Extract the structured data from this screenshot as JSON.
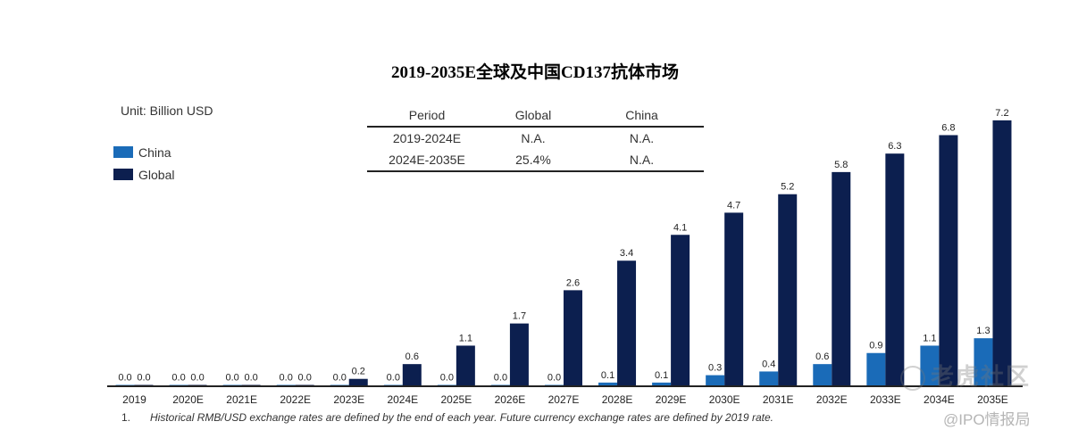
{
  "colors": {
    "china": "#1a6bb8",
    "global": "#0c1f4f"
  },
  "chart_data": {
    "type": "bar",
    "title": "2019-2035E全球及中国CD137抗体市场",
    "unit_label": "Unit: Billion USD",
    "categories": [
      "2019",
      "2020E",
      "2021E",
      "2022E",
      "2023E",
      "2024E",
      "2025E",
      "2026E",
      "2027E",
      "2028E",
      "2029E",
      "2030E",
      "2031E",
      "2032E",
      "2033E",
      "2034E",
      "2035E"
    ],
    "series": [
      {
        "name": "China",
        "values": [
          0.0,
          0.0,
          0.0,
          0.0,
          0.0,
          0.0,
          0.0,
          0.0,
          0.0,
          0.1,
          0.1,
          0.3,
          0.4,
          0.6,
          0.9,
          1.1,
          1.3
        ]
      },
      {
        "name": "Global",
        "values": [
          0.0,
          0.0,
          0.0,
          0.0,
          0.2,
          0.6,
          1.1,
          1.7,
          2.6,
          3.4,
          4.1,
          4.7,
          5.2,
          5.8,
          6.3,
          6.8,
          7.2
        ]
      }
    ],
    "legend_position": "top-left",
    "grid": false,
    "cagr_table": {
      "headers": [
        "Period",
        "Global",
        "China"
      ],
      "rows": [
        [
          "2019-2024E",
          "N.A.",
          "N.A."
        ],
        [
          "2024E-2035E",
          "25.4%",
          "N.A."
        ]
      ]
    }
  },
  "footnote": {
    "number": "1.",
    "text": "Historical RMB/USD exchange rates are defined by the end of each year. Future currency exchange rates are defined by 2019 rate."
  },
  "watermark": {
    "brand": "老虎社区",
    "handle": "@IPO情报局"
  }
}
